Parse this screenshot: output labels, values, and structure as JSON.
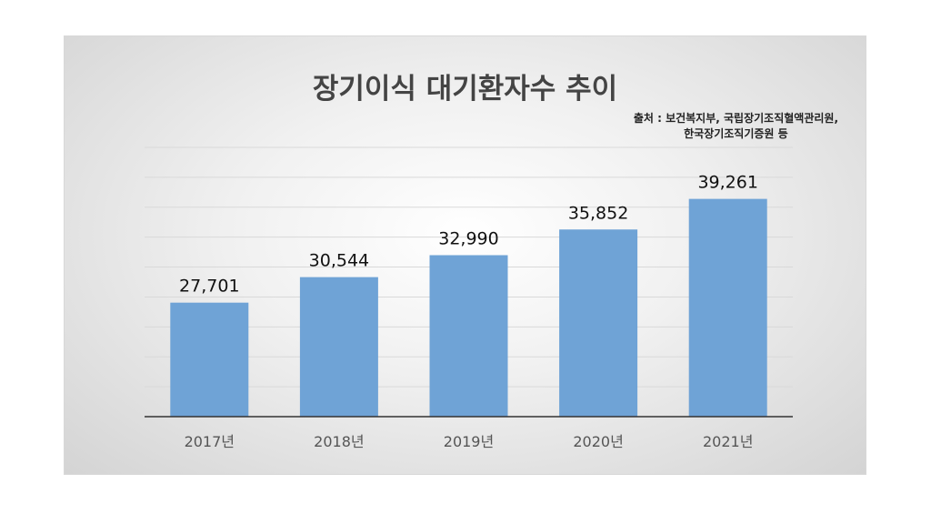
{
  "chart_data": {
    "type": "bar",
    "title": "장기이식 대기환자수 추이",
    "source_note": [
      "출처 : 보건복지부, 국립장기조직혈액관리원,",
      "한국장기조직기증원 등"
    ],
    "categories": [
      "2017년",
      "2018년",
      "2019년",
      "2020년",
      "2021년"
    ],
    "values": [
      27701,
      30544,
      32990,
      35852,
      39261
    ],
    "value_labels": [
      "27,701",
      "30,544",
      "32,990",
      "35,852",
      "39,261"
    ],
    "xlabel": "",
    "ylabel": "",
    "ylim": [
      15000,
      45000
    ],
    "y_gridlines": true,
    "y_tick_labels_shown": false,
    "bar_color": "#6fa3d6",
    "legend": "none"
  }
}
